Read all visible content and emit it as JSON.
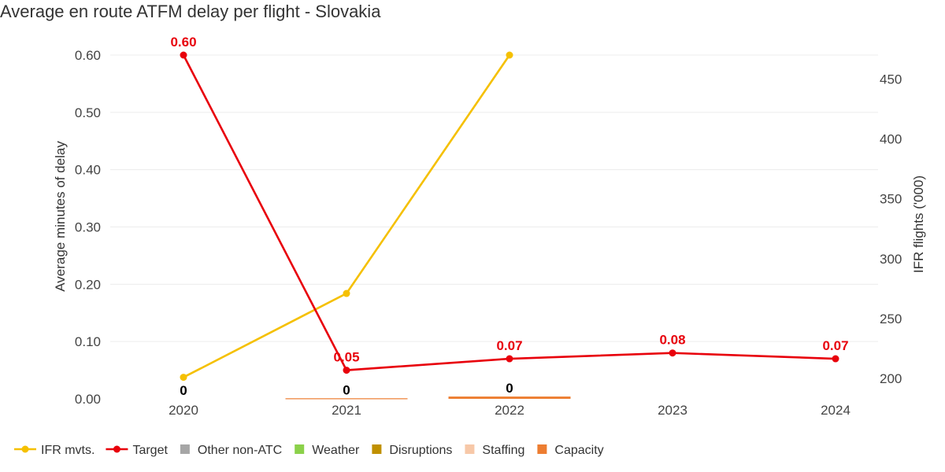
{
  "chart_data": {
    "type": "line",
    "title": "Average en route ATFM delay per flight - Slovakia",
    "ylabel": "Average minutes of delay",
    "y2label": "IFR flights ('000)",
    "categories": [
      "2020",
      "2021",
      "2022",
      "2023",
      "2024"
    ],
    "ylim": [
      0,
      0.6
    ],
    "yticks": [
      "0.00",
      "0.10",
      "0.20",
      "0.30",
      "0.40",
      "0.50",
      "0.60"
    ],
    "y2lim": [
      183,
      470
    ],
    "y2ticks": [
      "200",
      "250",
      "300",
      "350",
      "400",
      "450"
    ],
    "grid": true,
    "legend_position": "bottom-left",
    "series": [
      {
        "name": "IFR mvts.",
        "axis": "right",
        "color": "#f5c000",
        "values": [
          201,
          271,
          470,
          null,
          null
        ]
      },
      {
        "name": "Target",
        "axis": "left",
        "color": "#e8000b",
        "values": [
          0.6,
          0.05,
          0.07,
          0.08,
          0.07
        ],
        "labels": [
          "0.60",
          "0.05",
          "0.07",
          "0.08",
          "0.07"
        ]
      },
      {
        "name": "Other non-ATC",
        "color": "#a6a6a6",
        "values": [
          0,
          0,
          0,
          null,
          null
        ]
      },
      {
        "name": "Weather",
        "color": "#8bd14a",
        "values": [
          0,
          0,
          0,
          null,
          null
        ]
      },
      {
        "name": "Disruptions",
        "color": "#c09000",
        "values": [
          0,
          0,
          0,
          null,
          null
        ]
      },
      {
        "name": "Staffing",
        "color": "#f7c8a8",
        "values": [
          0,
          0,
          0,
          null,
          null
        ]
      },
      {
        "name": "Capacity",
        "color": "#ed7d31",
        "values": [
          0,
          0.001,
          0.004,
          null,
          null
        ]
      }
    ],
    "bar_totals": [
      "0",
      "0",
      "0",
      null,
      null
    ],
    "legend": [
      {
        "name": "IFR mvts.",
        "kind": "line",
        "color": "#f5c000"
      },
      {
        "name": "Target",
        "kind": "line",
        "color": "#e8000b"
      },
      {
        "name": "Other non-ATC",
        "kind": "box",
        "color": "#a6a6a6"
      },
      {
        "name": "Weather",
        "kind": "box",
        "color": "#8bd14a"
      },
      {
        "name": "Disruptions",
        "kind": "box",
        "color": "#c09000"
      },
      {
        "name": "Staffing",
        "kind": "box",
        "color": "#f7c8a8"
      },
      {
        "name": "Capacity",
        "kind": "box",
        "color": "#ed7d31"
      }
    ]
  }
}
